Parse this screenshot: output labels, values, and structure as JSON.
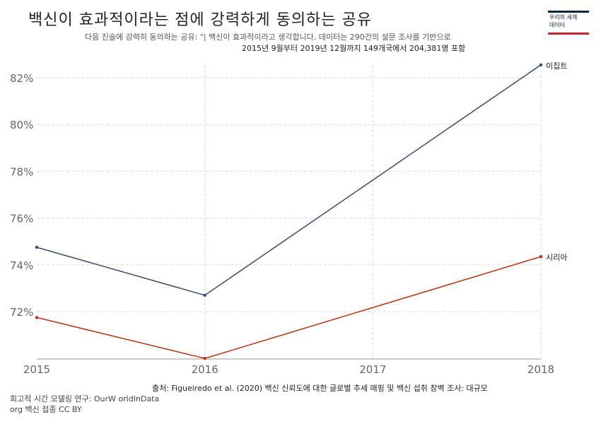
{
  "header": {
    "title": "백신이 효과적이라는 점에 강력하게 동의하는 공유",
    "subtitle_line1": "다음 진술에 강력히 동의하는 공유: \"| 백신이 효과적이라고 생각합니다. 데이터는 290건의 설문 조사를 기반으로",
    "subtitle_line2": "2015년 9월부터 2019년 12월까지 149개국에서 204,381명 포함"
  },
  "logo": {
    "line1": "우리의 세계",
    "line2": "데이터"
  },
  "footer": {
    "source": "출처: Figueiredo et al. (2020) 백신 신뢰도에 대한 글로벌 추세 매핑 및 백신 섭취 창벽 조사: 대규모",
    "note_line1": "회고적 시간 모델링 연구: OurW orldInData",
    "note_line2": "org 백신 접종 CC BY"
  },
  "colors": {
    "egypt": "#3c4b6b",
    "syria": "#b5340f",
    "grid": "#d9d9d9"
  },
  "chart_data": {
    "type": "line",
    "x": [
      2015,
      2016,
      2017,
      2018
    ],
    "ylim": [
      70,
      83
    ],
    "y_ticks": [
      72,
      74,
      76,
      78,
      80,
      82
    ],
    "y_tick_labels": [
      "72%",
      "74%",
      "76%",
      "78%",
      "80%",
      "82%"
    ],
    "x_tick_labels": [
      "2015",
      "2016",
      "2017",
      "2018"
    ],
    "grid": true,
    "legend": "end-labels",
    "series": [
      {
        "name": "이집트",
        "x": [
          2015,
          2016,
          2018
        ],
        "values": [
          74.75,
          72.7,
          82.55
        ],
        "color": "#3c4b6b"
      },
      {
        "name": "시리아",
        "x": [
          2015,
          2016,
          2018
        ],
        "values": [
          71.75,
          70.0,
          74.35
        ],
        "color": "#b5340f"
      }
    ]
  }
}
